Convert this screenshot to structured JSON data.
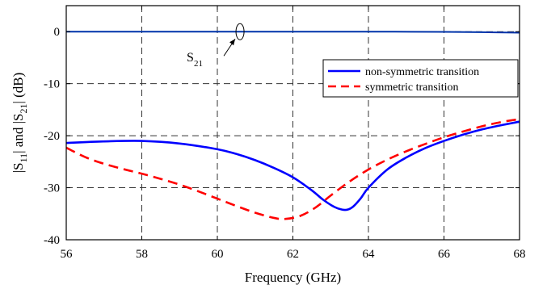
{
  "chart_data": {
    "type": "line",
    "title": "",
    "xlabel": "Frequency (GHz)",
    "ylabel": {
      "parts": [
        "|S",
        "11",
        "| and |S",
        "21",
        "| (dB)"
      ]
    },
    "xlim": [
      56,
      68
    ],
    "ylim": [
      -40,
      5
    ],
    "xticks": [
      56,
      58,
      60,
      62,
      64,
      66,
      68
    ],
    "yticks": [
      0,
      -10,
      -20,
      -30,
      -40
    ],
    "xtick_labels": [
      "56",
      "58",
      "60",
      "62",
      "64",
      "66",
      "68"
    ],
    "ytick_labels": [
      "0",
      "-10",
      "-20",
      "-30",
      "-40"
    ],
    "grid": true,
    "legend_position": "right",
    "series": [
      {
        "name": "non-symmetric transition",
        "color": "#0000ff",
        "dash": "solid",
        "x": [
          56,
          57,
          58,
          59,
          60,
          60.5,
          61,
          61.5,
          62,
          62.5,
          62.8,
          63.1,
          63.3,
          63.45,
          63.6,
          63.8,
          64,
          64.5,
          65,
          65.5,
          66,
          66.5,
          67,
          67.5,
          68
        ],
        "y": [
          -21.4,
          -21.1,
          -21.0,
          -21.5,
          -22.6,
          -23.5,
          -24.7,
          -26.2,
          -28.0,
          -30.5,
          -32.3,
          -33.7,
          -34.2,
          -34.2,
          -33.6,
          -32.0,
          -30.0,
          -26.5,
          -24.2,
          -22.4,
          -21.0,
          -19.8,
          -18.8,
          -18.0,
          -17.3
        ]
      },
      {
        "name": "symmetric transition",
        "color": "#ff0000",
        "dash": "dashed",
        "x": [
          56,
          56.5,
          57,
          57.5,
          58,
          58.5,
          59,
          59.5,
          60,
          60.5,
          61,
          61.5,
          61.8,
          62.2,
          62.6,
          63,
          63.5,
          64,
          64.5,
          65,
          65.5,
          66,
          66.5,
          67,
          67.5,
          68
        ],
        "y": [
          -22.3,
          -24.1,
          -25.4,
          -26.4,
          -27.3,
          -28.3,
          -29.4,
          -30.7,
          -32.1,
          -33.5,
          -34.8,
          -35.8,
          -36.0,
          -35.4,
          -33.8,
          -31.5,
          -28.8,
          -26.5,
          -24.6,
          -23.0,
          -21.6,
          -20.3,
          -19.2,
          -18.2,
          -17.4,
          -16.8
        ]
      },
      {
        "name": "",
        "color": "#0033aa",
        "dash": "solid",
        "x": [
          56,
          58,
          60,
          62,
          64,
          66,
          67,
          68
        ],
        "y": [
          0,
          0,
          0,
          0,
          0,
          -0.05,
          -0.1,
          -0.2
        ]
      }
    ],
    "annotation": {
      "text": "S",
      "subscript": "21",
      "target_x": 60.6,
      "target_y": 0
    }
  }
}
